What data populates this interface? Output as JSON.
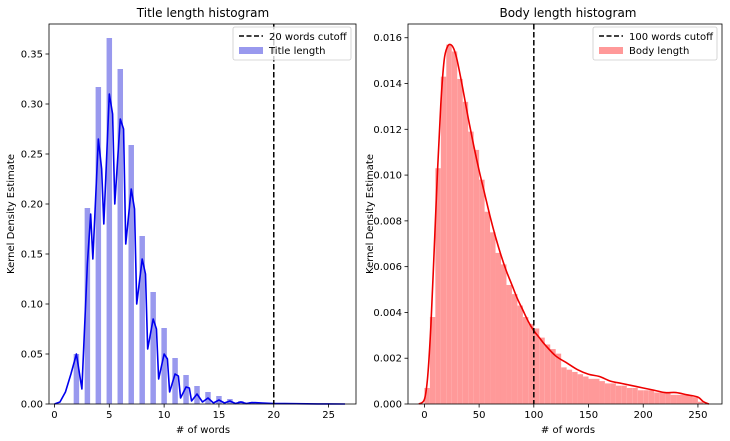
{
  "chart_data": [
    {
      "type": "bar",
      "title": "Title length histogram",
      "xlabel": "# of words",
      "ylabel": "Kernel Density Estimate",
      "xlim": [
        -0.5,
        27.5
      ],
      "ylim": [
        0,
        0.38
      ],
      "xticks": [
        0,
        5,
        10,
        15,
        20,
        25
      ],
      "xtick_labels": [
        "0",
        "5",
        "10",
        "15",
        "20",
        "25"
      ],
      "yticks": [
        0,
        0.05,
        0.1,
        0.15,
        0.2,
        0.25,
        0.3,
        0.35
      ],
      "ytick_labels": [
        "0.00",
        "0.05",
        "0.10",
        "0.15",
        "0.20",
        "0.25",
        "0.30",
        "0.35"
      ],
      "bar_color": "#9999ee",
      "kde_color": "#0000ee",
      "cutoff": 20,
      "bar_width": 0.5,
      "bars": {
        "x": [
          2,
          3,
          4,
          5,
          6,
          7,
          8,
          9,
          10,
          11,
          12,
          13,
          14,
          15,
          16,
          17,
          18
        ],
        "values": [
          0.05,
          0.196,
          0.317,
          0.366,
          0.335,
          0.259,
          0.168,
          0.112,
          0.076,
          0.046,
          0.029,
          0.018,
          0.012,
          0.008,
          0.005,
          0.003,
          0.002
        ]
      },
      "kde": {
        "x": [
          0,
          0.5,
          1,
          1.5,
          2,
          2.5,
          3,
          3.3,
          3.5,
          4,
          4.3,
          4.5,
          5,
          5.3,
          5.5,
          6,
          6.3,
          6.5,
          7,
          7.3,
          7.5,
          8,
          8.3,
          8.5,
          9,
          9.3,
          9.5,
          10,
          10.3,
          10.5,
          11,
          11.3,
          11.5,
          12,
          12.3,
          12.5,
          13,
          13.5,
          14,
          14.5,
          15,
          15.5,
          16,
          16.5,
          17,
          17.5,
          18,
          19,
          20,
          21,
          22,
          23,
          24,
          25,
          26.5
        ],
        "y": [
          0,
          0.002,
          0.012,
          0.03,
          0.05,
          0.015,
          0.14,
          0.19,
          0.145,
          0.265,
          0.235,
          0.18,
          0.31,
          0.29,
          0.2,
          0.285,
          0.275,
          0.16,
          0.215,
          0.195,
          0.1,
          0.145,
          0.13,
          0.055,
          0.085,
          0.075,
          0.025,
          0.05,
          0.045,
          0.012,
          0.03,
          0.028,
          0.006,
          0.017,
          0.016,
          0.003,
          0.01,
          0.002,
          0.006,
          0.001,
          0.004,
          0.001,
          0.003,
          0.0005,
          0.002,
          0.0005,
          0.0015,
          0.001,
          0.0005,
          0.0004,
          0.0003,
          0.0002,
          0.0001,
          0.0001,
          0
        ],
        "smoothing": false
      },
      "legend": {
        "placement": "top-right",
        "entries": [
          {
            "label": "20 words cutoff",
            "kind": "dashed-line"
          },
          {
            "label": "Title length",
            "kind": "patch"
          }
        ]
      }
    },
    {
      "type": "bar",
      "title": "Body length histogram",
      "xlabel": "# of words",
      "ylabel": "Kernel Density Estimate",
      "xlim": [
        -15,
        272
      ],
      "ylim": [
        0,
        0.0166
      ],
      "xticks": [
        0,
        50,
        100,
        150,
        200,
        250
      ],
      "xtick_labels": [
        "0",
        "50",
        "100",
        "150",
        "200",
        "250"
      ],
      "yticks": [
        0,
        0.002,
        0.004,
        0.006,
        0.008,
        0.01,
        0.012,
        0.014,
        0.016
      ],
      "ytick_labels": [
        "0.000",
        "0.002",
        "0.004",
        "0.006",
        "0.008",
        "0.010",
        "0.012",
        "0.014",
        "0.016"
      ],
      "bar_color": "#ff9999",
      "kde_color": "#ee0000",
      "cutoff": 100,
      "bar_width": 5,
      "bars": {
        "x": [
          2.5,
          7.5,
          12.5,
          17.5,
          22.5,
          27.5,
          32.5,
          37.5,
          42.5,
          47.5,
          52.5,
          57.5,
          62.5,
          67.5,
          72.5,
          77.5,
          82.5,
          87.5,
          92.5,
          97.5,
          102.5,
          107.5,
          112.5,
          117.5,
          122.5,
          127.5,
          132.5,
          137.5,
          142.5,
          147.5,
          152.5,
          157.5,
          162.5,
          167.5,
          172.5,
          177.5,
          182.5,
          187.5,
          192.5,
          197.5,
          202.5,
          207.5,
          212.5,
          217.5,
          222.5,
          227.5,
          232.5,
          237.5,
          242.5,
          247.5,
          252.5
        ],
        "values": [
          0.0007,
          0.0038,
          0.0103,
          0.0143,
          0.0157,
          0.0154,
          0.0142,
          0.0132,
          0.0119,
          0.0111,
          0.0098,
          0.0084,
          0.0075,
          0.0066,
          0.0061,
          0.0052,
          0.0048,
          0.0043,
          0.0038,
          0.0035,
          0.0033,
          0.0029,
          0.0026,
          0.0024,
          0.0022,
          0.0016,
          0.0015,
          0.0014,
          0.0013,
          0.0012,
          0.0011,
          0.0011,
          0.001,
          0.0009,
          0.0009,
          0.0008,
          0.0008,
          0.0007,
          0.0007,
          0.0006,
          0.0006,
          0.0006,
          0.0005,
          0.0005,
          0.0005,
          0.0004,
          0.0004,
          0.0004,
          0.0004,
          0.0003,
          0.0001
        ]
      },
      "kde": {
        "x": [
          -5,
          0,
          3,
          6,
          9,
          12,
          15,
          18,
          21,
          24,
          27,
          30,
          35,
          40,
          45,
          50,
          55,
          60,
          65,
          70,
          75,
          80,
          85,
          90,
          95,
          100,
          105,
          110,
          120,
          130,
          140,
          150,
          160,
          170,
          180,
          190,
          200,
          210,
          220,
          230,
          240,
          250,
          255,
          260
        ],
        "y": [
          0,
          0.0002,
          0.0012,
          0.0035,
          0.0068,
          0.0102,
          0.0131,
          0.015,
          0.0156,
          0.0157,
          0.0155,
          0.015,
          0.0138,
          0.0125,
          0.0113,
          0.0102,
          0.0092,
          0.0082,
          0.0073,
          0.0065,
          0.0058,
          0.0052,
          0.0046,
          0.0041,
          0.0036,
          0.0032,
          0.0029,
          0.0026,
          0.0021,
          0.0018,
          0.0015,
          0.0013,
          0.0012,
          0.001,
          0.0009,
          0.0008,
          0.0007,
          0.0006,
          0.0005,
          0.0005,
          0.0004,
          0.0003,
          0.0001,
          0
        ],
        "smoothing": true
      },
      "legend": {
        "placement": "top-right",
        "entries": [
          {
            "label": "100 words cutoff",
            "kind": "dashed-line"
          },
          {
            "label": "Body length",
            "kind": "patch"
          }
        ]
      }
    }
  ]
}
